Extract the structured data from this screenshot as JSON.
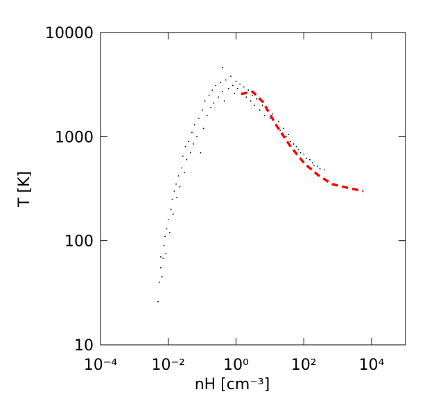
{
  "chart_data": {
    "type": "scatter",
    "xlabel": "nH [cm⁻³]",
    "ylabel": "T [K]",
    "xscale": "log",
    "yscale": "log",
    "xlim": [
      0.0001,
      100000
    ],
    "ylim": [
      10,
      10000
    ],
    "xticks": [
      {
        "value": 0.0001,
        "label": "10⁻⁴"
      },
      {
        "value": 0.01,
        "label": "10⁻²"
      },
      {
        "value": 1,
        "label": "10⁰"
      },
      {
        "value": 100,
        "label": "10²"
      },
      {
        "value": 10000,
        "label": "10⁴"
      }
    ],
    "yticks": [
      10,
      100,
      1000,
      10000
    ],
    "series": [
      {
        "type": "scatter",
        "color": "#000000",
        "x": [
          0.005,
          0.0055,
          0.006,
          0.006,
          0.0065,
          0.007,
          0.0075,
          0.008,
          0.0085,
          0.009,
          0.01,
          0.011,
          0.012,
          0.013,
          0.014,
          0.015,
          0.017,
          0.018,
          0.02,
          0.022,
          0.025,
          0.027,
          0.03,
          0.032,
          0.035,
          0.04,
          0.045,
          0.05,
          0.055,
          0.06,
          0.07,
          0.08,
          0.09,
          0.1,
          0.11,
          0.12,
          0.14,
          0.16,
          0.18,
          0.2,
          0.22,
          0.25,
          0.3,
          0.35,
          0.4,
          0.4,
          0.45,
          0.5,
          0.6,
          0.7,
          0.8,
          0.9,
          1.0,
          1.1,
          1.3,
          1.5,
          1.7,
          2,
          2.3,
          2.7,
          3,
          3.5,
          4,
          5,
          6,
          7,
          8,
          10,
          12,
          15,
          18,
          20,
          25,
          30,
          35,
          40,
          50,
          60,
          70,
          80,
          100,
          120,
          150,
          180,
          200,
          250,
          300,
          400
        ],
        "y": [
          26,
          40,
          55,
          70,
          45,
          68,
          90,
          110,
          75,
          130,
          160,
          120,
          200,
          250,
          180,
          300,
          350,
          260,
          420,
          330,
          500,
          650,
          450,
          800,
          600,
          900,
          700,
          1100,
          850,
          1300,
          1000,
          1500,
          700,
          1800,
          1200,
          2200,
          1600,
          2500,
          1900,
          2800,
          2100,
          3100,
          2400,
          3300,
          2700,
          4600,
          2200,
          3500,
          2900,
          3800,
          3100,
          2600,
          3400,
          2900,
          3200,
          2600,
          3000,
          2400,
          2800,
          2200,
          2500,
          2000,
          2300,
          1800,
          2000,
          1600,
          1800,
          1500,
          1650,
          1300,
          1400,
          1150,
          1200,
          1000,
          1050,
          900,
          850,
          800,
          750,
          700,
          680,
          620,
          600,
          560,
          530,
          520,
          490,
          480
        ]
      },
      {
        "type": "line",
        "color": "#ff0000",
        "dashed": true,
        "x": [
          1.4,
          3.1,
          6.2,
          16,
          41,
          105,
          270,
          680,
          1750,
          5700
        ],
        "y": [
          2570,
          2700,
          2150,
          1260,
          800,
          550,
          425,
          350,
          325,
          300
        ]
      }
    ]
  }
}
